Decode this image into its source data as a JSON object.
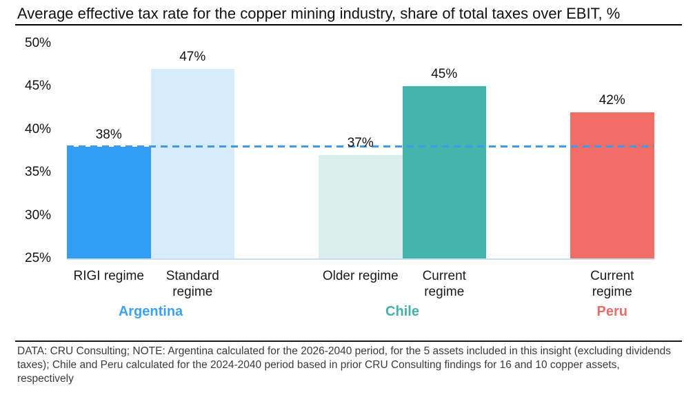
{
  "title": "Average effective tax rate for the copper mining industry, share of total taxes over EBIT, %",
  "chart_data": {
    "type": "bar",
    "title": "Average effective tax rate for the copper mining industry, share of total taxes over EBIT, %",
    "xlabel": "",
    "ylabel": "share of total taxes over EBIT, %",
    "ylim": [
      25,
      50
    ],
    "yticks_top_to_bottom": [
      "50%",
      "45%",
      "40%",
      "35%",
      "30%",
      "25%"
    ],
    "grid": false,
    "baseline_value": 25,
    "reference_line": {
      "value": 38,
      "style": "dashed",
      "color": "#3E9AF0"
    },
    "groups": [
      {
        "name": "Argentina",
        "label_color": "#3BA1F2",
        "bars": [
          {
            "label": "RIGI regime",
            "label_lines": [
              "RIGI regime"
            ],
            "value": 38,
            "display": "38%",
            "color": "#339FF4"
          },
          {
            "label": "Standard regime",
            "label_lines": [
              "Standard",
              "regime"
            ],
            "value": 47,
            "display": "47%",
            "color": "#D6EBFB"
          }
        ]
      },
      {
        "name": "Chile",
        "label_color": "#45B0A8",
        "bars": [
          {
            "label": "Older regime",
            "label_lines": [
              "Older regime"
            ],
            "value": 37,
            "display": "37%",
            "color": "#DAEEEB"
          },
          {
            "label": "Current regime",
            "label_lines": [
              "Current",
              "regime"
            ],
            "value": 45,
            "display": "45%",
            "color": "#45B4AC"
          }
        ]
      },
      {
        "name": "Peru",
        "label_color": "#EF6A64",
        "bars": [
          {
            "label": "Current regime",
            "label_lines": [
              "Current",
              "regime"
            ],
            "value": 42,
            "display": "42%",
            "color": "#F06E66"
          }
        ]
      }
    ]
  },
  "footer": {
    "note": "DATA: CRU Consulting; NOTE: Argentina calculated for the 2026-2040 period, for the 5 assets included in this insight (excluding dividends taxes); Chile and Peru calculated for the 2024-2040 period based in prior CRU Consulting findings for 16 and 10 copper assets, respectively"
  }
}
